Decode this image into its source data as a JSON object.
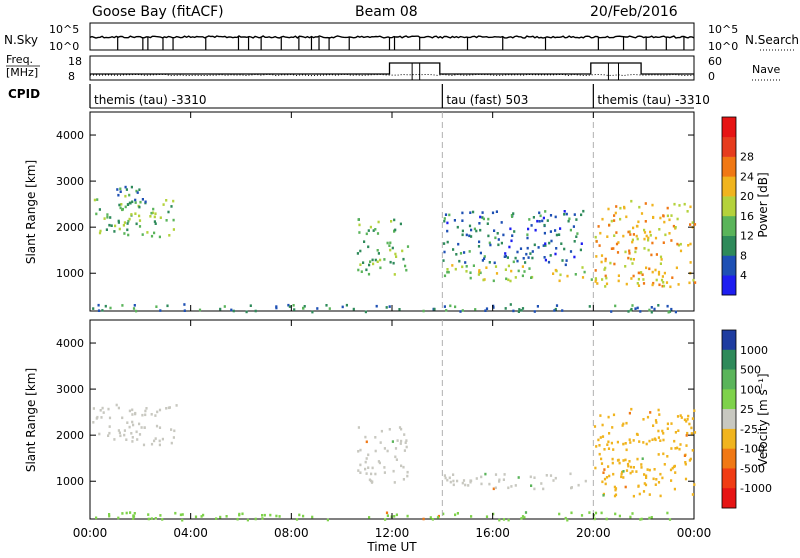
{
  "header": {
    "station": "Goose Bay (fitACF)",
    "beam": "Beam 08",
    "date": "20/Feb/2016"
  },
  "aux_labels": {
    "nsky": "N.Sky",
    "nsky_top": "10^5",
    "nsky_bottom": "10^0",
    "nsearch": "N.Search",
    "nsearch_top": "10^5",
    "nsearch_bottom": "10^0",
    "freq_line1": "Freq.",
    "freq_line2": "[MHz]",
    "freq_top": "18",
    "freq_bottom": "8",
    "nave": "Nave",
    "nave_top": "60",
    "nave_bottom": "0",
    "cpid": "CPID"
  },
  "cpid_segments": [
    {
      "label": "themis (tau) -3310",
      "start_hour": 0
    },
    {
      "label": "tau (fast) 503",
      "start_hour": 14
    },
    {
      "label": "themis (tau) -3310",
      "start_hour": 20
    }
  ],
  "power_scale": {
    "label": "Power [dB]",
    "ticks": [
      "4",
      "8",
      "12",
      "16",
      "20",
      "24",
      "28"
    ],
    "colors": [
      "#1e1ef0",
      "#1e50b4",
      "#2e8a5a",
      "#5ab45a",
      "#b4d23c",
      "#f0b41e",
      "#f07814",
      "#e63c1e",
      "#e61414"
    ]
  },
  "velocity_scale": {
    "label": "Velocity [m s⁻¹]",
    "ticks": [
      "1000",
      "500",
      "100",
      "25",
      "-25",
      "-100",
      "-500",
      "-1000"
    ],
    "colors": [
      "#1e3ca0",
      "#2e8a5a",
      "#5ab45a",
      "#7ed24a",
      "#c8c8c0",
      "#f0b41e",
      "#f07814",
      "#f03c14",
      "#e61414"
    ]
  },
  "axes": {
    "ylabel": "Slant Range [km]",
    "yticks": [
      "1000",
      "2000",
      "3000",
      "4000"
    ],
    "xlabel": "Time UT",
    "xticks": [
      "00:00",
      "04:00",
      "08:00",
      "12:00",
      "16:00",
      "20:00",
      "00:00"
    ]
  },
  "chart_data": [
    {
      "type": "heatmap",
      "title": "Power",
      "x_range": [
        "00:00",
        "24:00"
      ],
      "y_range_km": [
        180,
        4500
      ],
      "colorbar": "Power [dB]",
      "clusters": [
        {
          "t0": 0.0,
          "t1": 3.4,
          "r0": 1800,
          "r1": 2700,
          "power_db": 12
        },
        {
          "t0": 1.0,
          "t1": 2.2,
          "r0": 2400,
          "r1": 2900,
          "power_db": 8
        },
        {
          "t0": 10.6,
          "t1": 12.6,
          "r0": 1000,
          "r1": 2200,
          "power_db": 12
        },
        {
          "t0": 14.0,
          "t1": 20.0,
          "r0": 850,
          "r1": 1200,
          "power_db": 16
        },
        {
          "t0": 14.0,
          "t1": 19.6,
          "r0": 1200,
          "r1": 2400,
          "power_db": 6
        },
        {
          "t0": 20.0,
          "t1": 24.0,
          "r0": 700,
          "r1": 2600,
          "power_db": 20
        },
        {
          "t0": 0.0,
          "t1": 24.0,
          "r0": 180,
          "r1": 350,
          "power_db": 8
        }
      ]
    },
    {
      "type": "heatmap",
      "title": "Velocity",
      "x_range": [
        "00:00",
        "24:00"
      ],
      "y_range_km": [
        180,
        4500
      ],
      "colorbar": "Velocity [m s-1]",
      "clusters": [
        {
          "t0": 0.0,
          "t1": 3.4,
          "r0": 1800,
          "r1": 2700,
          "velocity": 0
        },
        {
          "t0": 10.6,
          "t1": 12.6,
          "r0": 1000,
          "r1": 2200,
          "velocity": 0
        },
        {
          "t0": 14.0,
          "t1": 20.0,
          "r0": 850,
          "r1": 1200,
          "velocity": 0
        },
        {
          "t0": 20.0,
          "t1": 24.0,
          "r0": 700,
          "r1": 2600,
          "velocity": -50
        },
        {
          "t0": 0.0,
          "t1": 24.0,
          "r0": 180,
          "r1": 350,
          "velocity": 60
        }
      ]
    }
  ]
}
